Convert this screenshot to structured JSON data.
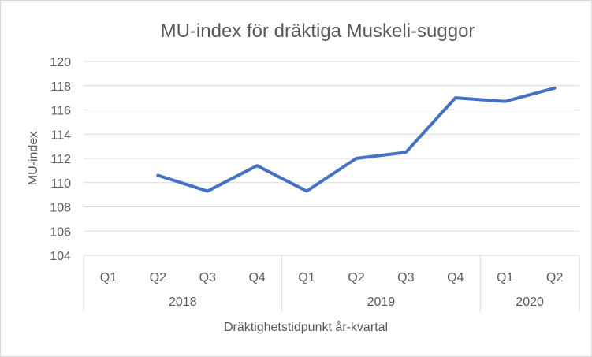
{
  "chart_data": {
    "type": "line",
    "title": "MU-index för dräktiga Muskeli-suggor",
    "xlabel": "Dräktighetstidpunkt år-kvartal",
    "ylabel": "MU-index",
    "ylim": [
      104,
      120
    ],
    "yticks": [
      104,
      106,
      108,
      110,
      112,
      114,
      116,
      118,
      120
    ],
    "grid": true,
    "categories": [
      "Q1",
      "Q2",
      "Q3",
      "Q4",
      "Q1",
      "Q2",
      "Q3",
      "Q4",
      "Q1",
      "Q2"
    ],
    "groups": [
      {
        "label": "2018",
        "count": 4
      },
      {
        "label": "2019",
        "count": 4
      },
      {
        "label": "2020",
        "count": 2
      }
    ],
    "series": [
      {
        "values": [
          null,
          110.6,
          109.3,
          111.4,
          109.3,
          112.0,
          112.5,
          117.0,
          116.7,
          117.8
        ],
        "color": "#4472C4"
      }
    ]
  }
}
